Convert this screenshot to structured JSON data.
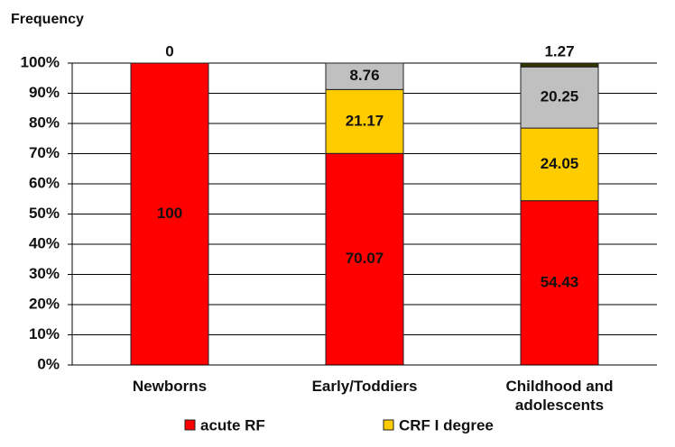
{
  "chart_data": {
    "type": "stacked_bar",
    "y_axis_label": "Frequency",
    "categories": [
      "Newborns",
      "Early/Toddiers",
      "Childhood and adolescents"
    ],
    "series": [
      {
        "name": "acute RF",
        "color": "#ff0000",
        "values": [
          100,
          70.07,
          54.43
        ]
      },
      {
        "name": "CRF I degree",
        "color": "#ffcc00",
        "values": [
          null,
          21.17,
          24.05
        ]
      },
      {
        "color": "#c0c0c0",
        "values": [
          null,
          8.76,
          20.25
        ]
      },
      {
        "color": "#333300",
        "values": [
          0,
          null,
          1.27
        ]
      }
    ],
    "ylim": [
      0,
      100
    ],
    "yticks": [
      {
        "value": 0,
        "label": "0%"
      },
      {
        "value": 10,
        "label": "10%"
      },
      {
        "value": 20,
        "label": "20%"
      },
      {
        "value": 30,
        "label": "30%"
      },
      {
        "value": 40,
        "label": "40%"
      },
      {
        "value": 50,
        "label": "50%"
      },
      {
        "value": 60,
        "label": "60%"
      },
      {
        "value": 70,
        "label": "70%"
      },
      {
        "value": 80,
        "label": "80%"
      },
      {
        "value": 90,
        "label": "90%"
      },
      {
        "value": 100,
        "label": "100%"
      }
    ],
    "grid": true
  }
}
